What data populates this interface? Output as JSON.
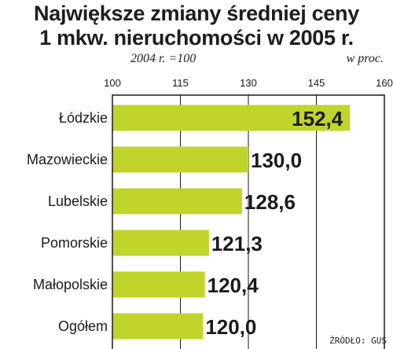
{
  "header": {
    "title_line1": "Największe zmiany średniej ceny",
    "title_line2": "1 mkw. nieruchomości w 2005 r.",
    "subtitle": "2004 r. =100",
    "unit": "w proc."
  },
  "footer": {
    "source": "ŹRÓDŁO: GUS"
  },
  "colors": {
    "bar": "#c1d42c",
    "frame": "#1a1a1a",
    "text": "#1a1a1a"
  },
  "chart_data": {
    "type": "bar",
    "orientation": "horizontal",
    "categories": [
      "Łódzkie",
      "Mazowieckie",
      "Lubelskie",
      "Pomorskie",
      "Małopolskie",
      "Ogółem"
    ],
    "values": [
      152.4,
      130.0,
      128.6,
      121.3,
      120.4,
      120.0
    ],
    "value_labels": [
      "152,4",
      "130,0",
      "128,6",
      "121,3",
      "120,4",
      "120,0"
    ],
    "xlim": [
      100,
      160
    ],
    "xticks": [
      "100",
      "115",
      "130",
      "145",
      "160"
    ],
    "xtick_values": [
      100,
      115,
      130,
      145,
      160
    ],
    "grid": true,
    "title": "Największe zmiany średniej ceny 1 mkw. nieruchomości w 2005 r."
  }
}
